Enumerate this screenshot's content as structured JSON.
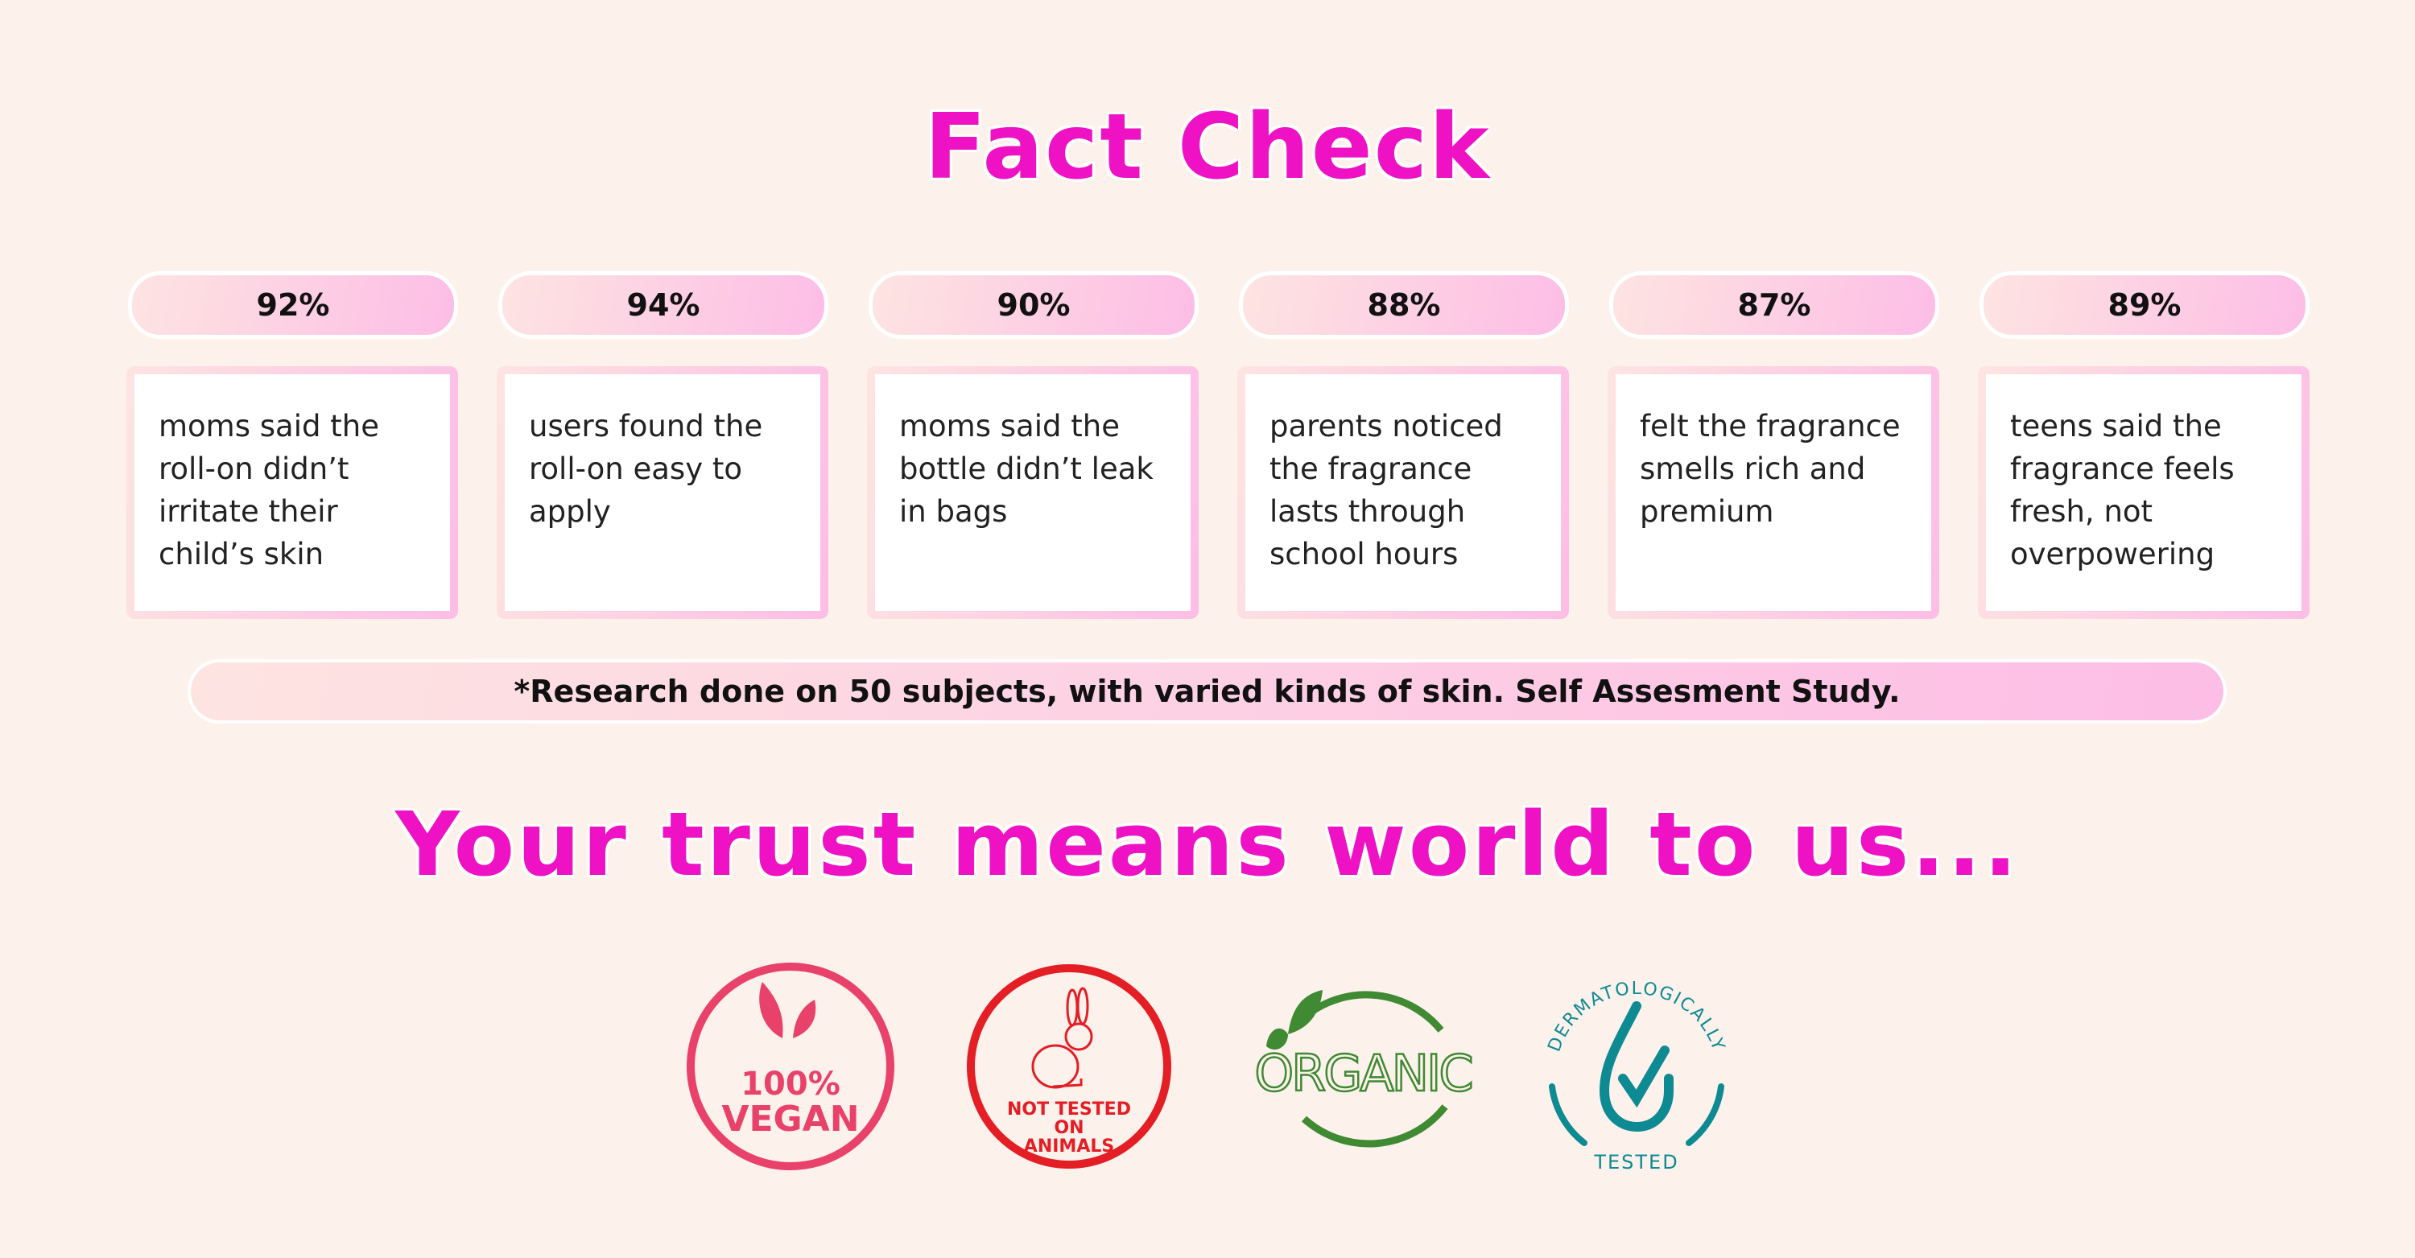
{
  "title": "Fact Check",
  "facts": [
    {
      "percent": "92%",
      "text": "moms said the roll-on didn’t irritate their child’s skin"
    },
    {
      "percent": "94%",
      "text": "users found the roll-on easy to apply"
    },
    {
      "percent": "90%",
      "text": "moms said the bottle didn’t leak in bags"
    },
    {
      "percent": "88%",
      "text": "parents noticed the fragrance lasts through school hours"
    },
    {
      "percent": "87%",
      "text": "felt the fragrance smells rich and premium"
    },
    {
      "percent": "89%",
      "text": "teens said the fragrance feels fresh, not overpowering"
    }
  ],
  "footnote": "*Research done on 50 subjects, with varied kinds of skin. Self Assesment Study.",
  "tagline": "Your trust means world to us...",
  "badges": {
    "vegan": {
      "line1": "100%",
      "line2": "VEGAN",
      "color": "#e8416a"
    },
    "cruelty_free": {
      "line1": "NOT TESTED",
      "line2": "ON",
      "line3": "ANIMALS",
      "color": "#e31e24"
    },
    "organic": {
      "label": "ORGANIC",
      "color": "#3f8a32"
    },
    "derma": {
      "top": "DERMATOLOGICALLY",
      "bottom": "TESTED",
      "color": "#0e8a92"
    }
  }
}
